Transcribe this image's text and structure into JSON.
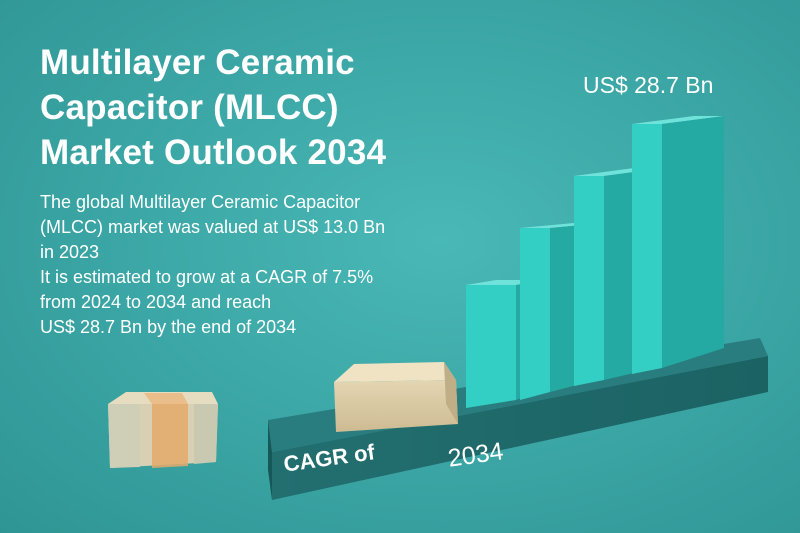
{
  "title": {
    "line1": "Multilayer Ceramic",
    "line2": "Capacitor (MLCC)",
    "line3": "Market Outlook 2034"
  },
  "description": {
    "line1": "The global Multilayer Ceramic Capacitor",
    "line2": "(MLCC) market was valued at US$ 13.0 Bn",
    "line3": "in 2023",
    "line4": "It is estimated to grow at a CAGR of 7.5%",
    "line5": "from 2024 to 2034 and reach",
    "line6": "US$ 28.7 Bn by the end of 2034"
  },
  "value_label": "US$ 28.7 Bn",
  "platform": {
    "cagr_label": "CAGR of",
    "year_label": "2034"
  },
  "colors": {
    "background": "#3aa5a4",
    "bar": "#2fc6bd",
    "platform": "#1f6f6f",
    "capacitor_body": "#d8c9a3",
    "text": "#ffffff"
  }
}
